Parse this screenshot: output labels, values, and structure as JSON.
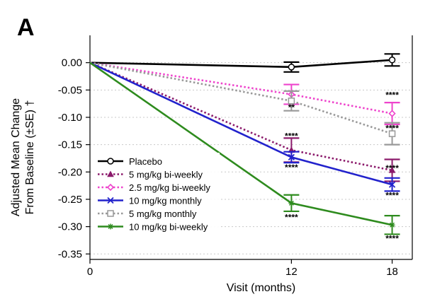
{
  "panel_label": "A",
  "chart_data": {
    "type": "line",
    "xlabel": "Visit (months)",
    "ylabel_lines": [
      "Adjusted Mean Change",
      "From Baseline (±SE) †"
    ],
    "x_ticks": [
      0,
      12,
      18
    ],
    "x_tick_labels": [
      "0",
      "12",
      "18"
    ],
    "y_ticks": [
      0.0,
      -0.05,
      -0.1,
      -0.15,
      -0.2,
      -0.25,
      -0.3,
      -0.35
    ],
    "y_tick_labels": [
      "0.00",
      "-0.05",
      "-0.10",
      "-0.15",
      "-0.20",
      "-0.25",
      "-0.30",
      "-0.35"
    ],
    "ylim": [
      -0.36,
      0.05
    ],
    "xlim": [
      0,
      19.2
    ],
    "grid": "horizontal dotted",
    "legend_position": "bottom-left",
    "series": [
      {
        "name": "Placebo",
        "color": "#000000",
        "line": "solid",
        "marker": "open-circle",
        "points": [
          {
            "x": 0,
            "y": 0.0
          },
          {
            "x": 12,
            "y": -0.008,
            "err": 0.009
          },
          {
            "x": 18,
            "y": 0.005,
            "err": 0.011
          }
        ]
      },
      {
        "name": "5 mg/kg bi-weekly",
        "color": "#8b1a6b",
        "line": "dotted",
        "marker": "triangle",
        "points": [
          {
            "x": 0,
            "y": 0.0
          },
          {
            "x": 12,
            "y": -0.16,
            "err": 0.022
          },
          {
            "x": 18,
            "y": -0.197,
            "err": 0.02
          }
        ]
      },
      {
        "name": "2.5 mg/kg bi-weekly",
        "color": "#ee44cc",
        "line": "dotted",
        "marker": "diamond",
        "points": [
          {
            "x": 0,
            "y": 0.0
          },
          {
            "x": 12,
            "y": -0.058,
            "err": 0.018
          },
          {
            "x": 18,
            "y": -0.093,
            "err": 0.02
          }
        ]
      },
      {
        "name": "10 mg/kg monthly",
        "color": "#2222cc",
        "line": "solid",
        "marker": "x",
        "points": [
          {
            "x": 0,
            "y": 0.0
          },
          {
            "x": 12,
            "y": -0.173,
            "err": 0.01
          },
          {
            "x": 18,
            "y": -0.223,
            "err": 0.012
          }
        ]
      },
      {
        "name": "5 mg/kg monthly",
        "color": "#999999",
        "line": "dotted",
        "marker": "open-square",
        "points": [
          {
            "x": 0,
            "y": 0.0
          },
          {
            "x": 12,
            "y": -0.07,
            "err": 0.018
          },
          {
            "x": 18,
            "y": -0.13,
            "err": 0.02
          }
        ]
      },
      {
        "name": "10 mg/kg bi-weekly",
        "color": "#2e8b1e",
        "line": "solid",
        "marker": "asterisk",
        "points": [
          {
            "x": 0,
            "y": 0.0
          },
          {
            "x": 12,
            "y": -0.257,
            "err": 0.015
          },
          {
            "x": 18,
            "y": -0.297,
            "err": 0.017
          }
        ]
      }
    ],
    "annotations": [
      {
        "x": 12,
        "y": -0.082,
        "text": "**"
      },
      {
        "x": 12,
        "y": -0.134,
        "text": "****"
      },
      {
        "x": 12,
        "y": -0.192,
        "text": "****"
      },
      {
        "x": 12,
        "y": -0.283,
        "text": "****"
      },
      {
        "x": 18,
        "y": -0.059,
        "text": "****"
      },
      {
        "x": 18,
        "y": -0.12,
        "text": "****"
      },
      {
        "x": 18,
        "y": -0.193,
        "text": "****"
      },
      {
        "x": 18,
        "y": -0.243,
        "text": "****"
      },
      {
        "x": 18,
        "y": -0.322,
        "text": "****"
      }
    ]
  }
}
